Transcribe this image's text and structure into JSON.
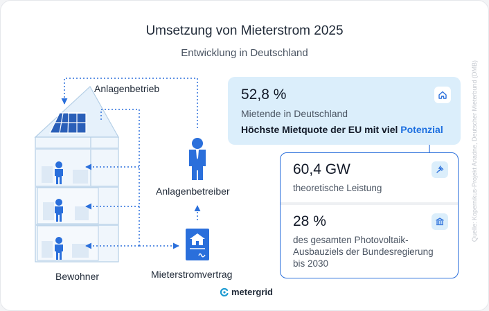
{
  "header": {
    "title": "Umsetzung von Mieterstrom 2025",
    "subtitle": "Entwicklung in Deutschland"
  },
  "source": "Quelle: Kopernikus-Projekt Ariadne, Deutscher Mieterbund (DMB)",
  "diagram": {
    "label_anlagenbetrieb": "Anlagenbetrieb",
    "label_anlagenbetreiber": "Anlagenbetreiber",
    "label_bewohner": "Bewohner",
    "label_mieterstromvertrag": "Mieterstromvertrag"
  },
  "stat_main": {
    "value": "52,8 %",
    "label": "Mietende in Deutschland",
    "headline_prefix": "Höchste Mietquote der EU mit viel ",
    "headline_accent": "Potenzial",
    "icon": "house-icon"
  },
  "stats": [
    {
      "value": "60,4 GW",
      "label": "theoretische Leistung",
      "icon": "plug-icon"
    },
    {
      "value": "28 %",
      "label": "des gesamten Photovoltaik-Ausbauziels der Bundesregierung bis 2030",
      "icon": "bank-icon"
    }
  ],
  "logo": {
    "text": "metergrid"
  },
  "colors": {
    "accent": "#1d6fe0",
    "stat_box_bg": "#dbeefb",
    "stat_box_border": "#2a6fdb",
    "text_dark": "#1f2937",
    "text_muted": "#4b5563"
  }
}
